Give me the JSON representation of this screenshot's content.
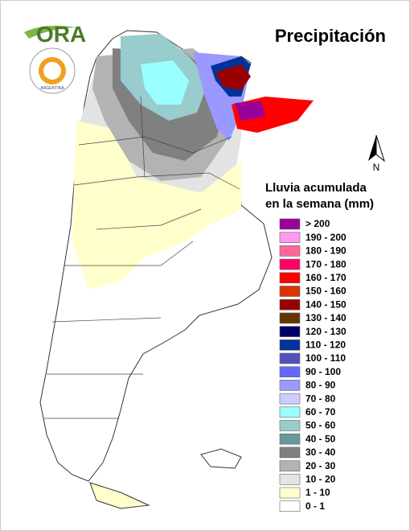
{
  "title": "Precipitación",
  "logo": {
    "name": "ORA",
    "emblem_text": "ARGENTINA"
  },
  "north_label": "N",
  "legend": {
    "title": [
      "Lluvia acumulada",
      "en la semana (mm)"
    ],
    "items": [
      {
        "label": "> 200",
        "color": "#990099"
      },
      {
        "label": "190 - 200",
        "color": "#ff99ee"
      },
      {
        "label": "180 - 190",
        "color": "#ff6699"
      },
      {
        "label": "170 - 180",
        "color": "#ff0066"
      },
      {
        "label": "160 - 170",
        "color": "#ff0000"
      },
      {
        "label": "150 - 160",
        "color": "#dd3300"
      },
      {
        "label": "140 - 150",
        "color": "#990000"
      },
      {
        "label": "130 - 140",
        "color": "#663300"
      },
      {
        "label": "120 - 130",
        "color": "#000066"
      },
      {
        "label": "110 - 120",
        "color": "#003399"
      },
      {
        "label": "100 - 110",
        "color": "#5050c0"
      },
      {
        "label": "90 - 100",
        "color": "#6666ff"
      },
      {
        "label": "80 - 90",
        "color": "#9999ff"
      },
      {
        "label": "70 - 80",
        "color": "#ccccff"
      },
      {
        "label": "60 - 70",
        "color": "#99ffff"
      },
      {
        "label": "50 - 60",
        "color": "#99cccc"
      },
      {
        "label": "40 - 50",
        "color": "#669999"
      },
      {
        "label": "30 - 40",
        "color": "#808080"
      },
      {
        "label": "20 - 30",
        "color": "#b3b3b3"
      },
      {
        "label": "10 - 20",
        "color": "#e3e3e3"
      },
      {
        "label": "1 - 10",
        "color": "#ffffcc"
      },
      {
        "label": "0 - 1",
        "color": "#ffffff"
      }
    ]
  }
}
